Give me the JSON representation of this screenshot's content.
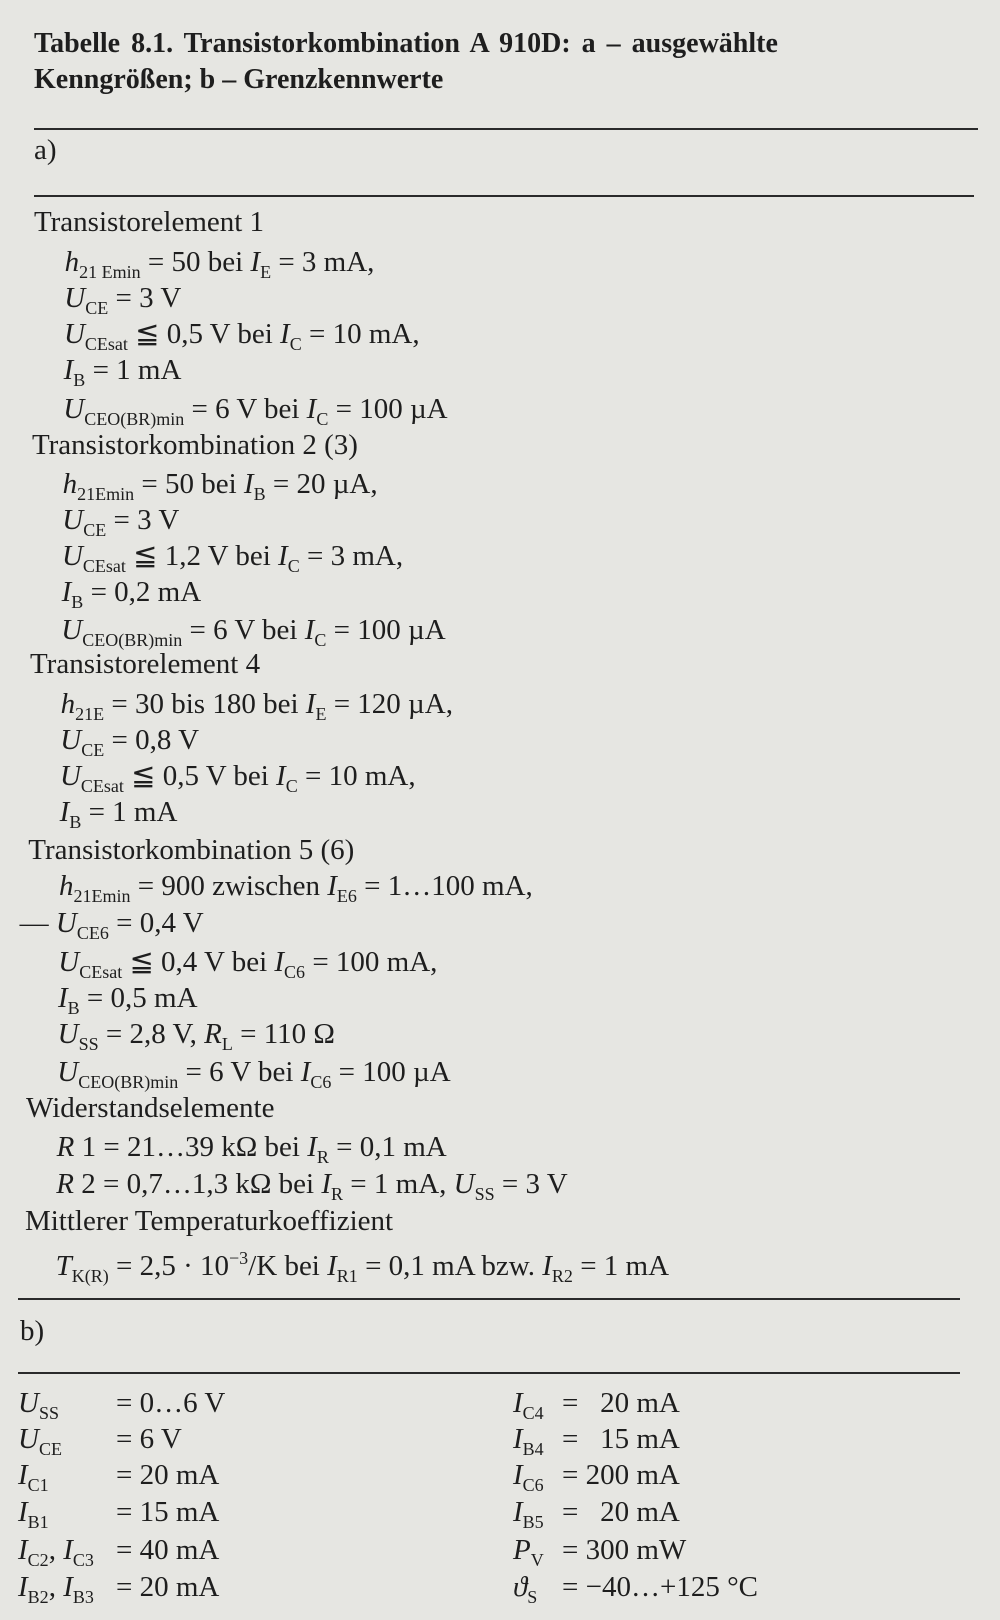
{
  "caption": {
    "line1": "Tabelle 8.1.  Transistorkombination  A 910D:  a  –  ausgewählte",
    "line2": "Kenngrößen; b – Grenzkennwerte"
  },
  "section_a": {
    "label": "a)",
    "lines": [
      {
        "kind": "heading",
        "segs": [
          [
            "Transistorelement 1",
            ""
          ]
        ]
      },
      {
        "kind": "item",
        "segs": [
          [
            "h",
            "i"
          ],
          [
            "21 Emin",
            "b"
          ],
          [
            " = 50 bei ",
            ""
          ],
          [
            "I",
            "i"
          ],
          [
            "E",
            "b"
          ],
          [
            " = 3 mA,",
            ""
          ]
        ]
      },
      {
        "kind": "item",
        "segs": [
          [
            "U",
            "i"
          ],
          [
            "CE",
            "b"
          ],
          [
            " = 3 V",
            ""
          ]
        ]
      },
      {
        "kind": "item",
        "segs": [
          [
            "U",
            "i"
          ],
          [
            "CEsat",
            "b"
          ],
          [
            " ≦ 0,5 V bei ",
            ""
          ],
          [
            "I",
            "i"
          ],
          [
            "C",
            "b"
          ],
          [
            " = 10 mA,",
            ""
          ]
        ]
      },
      {
        "kind": "item",
        "segs": [
          [
            "I",
            "i"
          ],
          [
            "B",
            "b"
          ],
          [
            " = 1 mA",
            ""
          ]
        ]
      },
      {
        "kind": "item",
        "segs": [
          [
            "U",
            "i"
          ],
          [
            "CEO(BR)min",
            "b"
          ],
          [
            " = 6 V bei ",
            ""
          ],
          [
            "I",
            "i"
          ],
          [
            "C",
            "b"
          ],
          [
            " = 100 µA",
            ""
          ]
        ]
      },
      {
        "kind": "heading",
        "segs": [
          [
            "Transistorkombination 2 (3)",
            ""
          ]
        ]
      },
      {
        "kind": "item",
        "segs": [
          [
            "h",
            "i"
          ],
          [
            "21Emin",
            "b"
          ],
          [
            " = 50 bei ",
            ""
          ],
          [
            "I",
            "i"
          ],
          [
            "B",
            "b"
          ],
          [
            " = 20 µA,",
            ""
          ]
        ]
      },
      {
        "kind": "item",
        "segs": [
          [
            "U",
            "i"
          ],
          [
            "CE",
            "b"
          ],
          [
            " = 3 V",
            ""
          ]
        ]
      },
      {
        "kind": "item",
        "segs": [
          [
            "U",
            "i"
          ],
          [
            "CEsat",
            "b"
          ],
          [
            " ≦ 1,2 V bei ",
            ""
          ],
          [
            "I",
            "i"
          ],
          [
            "C",
            "b"
          ],
          [
            " = 3 mA,",
            ""
          ]
        ]
      },
      {
        "kind": "item",
        "segs": [
          [
            "I",
            "i"
          ],
          [
            "B",
            "b"
          ],
          [
            " = 0,2 mA",
            ""
          ]
        ]
      },
      {
        "kind": "item",
        "segs": [
          [
            "U",
            "i"
          ],
          [
            "CEO(BR)min",
            "b"
          ],
          [
            " = 6 V bei ",
            ""
          ],
          [
            "I",
            "i"
          ],
          [
            "C",
            "b"
          ],
          [
            " = 100 µA",
            ""
          ]
        ]
      },
      {
        "kind": "heading",
        "segs": [
          [
            "Transistorelement 4",
            ""
          ]
        ]
      },
      {
        "kind": "item",
        "segs": [
          [
            "h",
            "i"
          ],
          [
            "21E",
            "b"
          ],
          [
            " = 30 bis 180 bei ",
            ""
          ],
          [
            "I",
            "i"
          ],
          [
            "E",
            "b"
          ],
          [
            " = 120 µA,",
            ""
          ]
        ]
      },
      {
        "kind": "item",
        "segs": [
          [
            "U",
            "i"
          ],
          [
            "CE",
            "b"
          ],
          [
            " = 0,8 V",
            ""
          ]
        ]
      },
      {
        "kind": "item",
        "segs": [
          [
            "U",
            "i"
          ],
          [
            "CEsat",
            "b"
          ],
          [
            " ≦ 0,5 V bei ",
            ""
          ],
          [
            "I",
            "i"
          ],
          [
            "C",
            "b"
          ],
          [
            " = 10 mA,",
            ""
          ]
        ]
      },
      {
        "kind": "item",
        "segs": [
          [
            "I",
            "i"
          ],
          [
            "B",
            "b"
          ],
          [
            " = 1 mA",
            ""
          ]
        ]
      },
      {
        "kind": "heading",
        "segs": [
          [
            "Transistorkombination 5 (6)",
            ""
          ]
        ]
      },
      {
        "kind": "item",
        "segs": [
          [
            "h",
            "i"
          ],
          [
            "21Emin",
            "b"
          ],
          [
            " = 900 zwischen ",
            ""
          ],
          [
            "I",
            "i"
          ],
          [
            "E6",
            "b"
          ],
          [
            " = 1…100 mA,",
            ""
          ]
        ]
      },
      {
        "kind": "dash-item",
        "segs": [
          [
            "— ",
            ""
          ],
          [
            "U",
            "i"
          ],
          [
            "CE6",
            "b"
          ],
          [
            " = 0,4 V",
            ""
          ]
        ]
      },
      {
        "kind": "item",
        "segs": [
          [
            "U",
            "i"
          ],
          [
            "CEsat",
            "b"
          ],
          [
            " ≦ 0,4 V bei ",
            ""
          ],
          [
            "I",
            "i"
          ],
          [
            "C6",
            "b"
          ],
          [
            " = 100 mA,",
            ""
          ]
        ]
      },
      {
        "kind": "item",
        "segs": [
          [
            "I",
            "i"
          ],
          [
            "B",
            "b"
          ],
          [
            " = 0,5 mA",
            ""
          ]
        ]
      },
      {
        "kind": "item",
        "segs": [
          [
            "U",
            "i"
          ],
          [
            "SS",
            "b"
          ],
          [
            " = 2,8 V, ",
            ""
          ],
          [
            "R",
            "i"
          ],
          [
            "L",
            "b"
          ],
          [
            " = 110 Ω",
            ""
          ]
        ]
      },
      {
        "kind": "item",
        "segs": [
          [
            "U",
            "i"
          ],
          [
            "CEO(BR)min",
            "b"
          ],
          [
            " = 6 V bei ",
            ""
          ],
          [
            "I",
            "i"
          ],
          [
            "C6",
            "b"
          ],
          [
            " = 100 µA",
            ""
          ]
        ]
      },
      {
        "kind": "heading",
        "segs": [
          [
            "Widerstandselemente",
            ""
          ]
        ]
      },
      {
        "kind": "item",
        "segs": [
          [
            "R",
            "i"
          ],
          [
            " 1 = 21…39 kΩ bei ",
            ""
          ],
          [
            "I",
            "i"
          ],
          [
            "R",
            "b"
          ],
          [
            " = 0,1 mA",
            ""
          ]
        ]
      },
      {
        "kind": "item",
        "segs": [
          [
            "R",
            "i"
          ],
          [
            " 2 = 0,7…1,3 kΩ bei ",
            ""
          ],
          [
            "I",
            "i"
          ],
          [
            "R",
            "b"
          ],
          [
            " = 1 mA, ",
            ""
          ],
          [
            "U",
            "i"
          ],
          [
            "SS",
            "b"
          ],
          [
            " = 3 V",
            ""
          ]
        ]
      },
      {
        "kind": "heading",
        "segs": [
          [
            "Mittlerer Temperaturkoeffizient",
            ""
          ]
        ]
      },
      {
        "kind": "item",
        "segs": [
          [
            "T",
            "i"
          ],
          [
            "K(R)",
            "b"
          ],
          [
            " = 2,5 · 10",
            ""
          ],
          [
            "−3",
            "p"
          ],
          [
            "/K bei ",
            ""
          ],
          [
            "I",
            "i"
          ],
          [
            "R1",
            "b"
          ],
          [
            " = 0,1 mA bzw. ",
            ""
          ],
          [
            "I",
            "i"
          ],
          [
            "R2",
            "b"
          ],
          [
            " = 1 mA",
            ""
          ]
        ]
      }
    ]
  },
  "section_b": {
    "label": "b)",
    "left": [
      {
        "label": [
          [
            "U",
            "i"
          ],
          [
            "SS",
            "b"
          ]
        ],
        "value": "= 0…6 V"
      },
      {
        "label": [
          [
            "U",
            "i"
          ],
          [
            "CE",
            "b"
          ]
        ],
        "value": "= 6 V"
      },
      {
        "label": [
          [
            "I",
            "i"
          ],
          [
            "C1",
            "b"
          ]
        ],
        "value": "= 20 mA"
      },
      {
        "label": [
          [
            "I",
            "i"
          ],
          [
            "B1",
            "b"
          ]
        ],
        "value": "= 15 mA"
      },
      {
        "label": [
          [
            "I",
            "i"
          ],
          [
            "C2",
            "b"
          ],
          [
            ", ",
            ""
          ],
          [
            "I",
            "i"
          ],
          [
            "C3",
            "b"
          ]
        ],
        "value": "= 40 mA"
      },
      {
        "label": [
          [
            "I",
            "i"
          ],
          [
            "B2",
            "b"
          ],
          [
            ", ",
            ""
          ],
          [
            "I",
            "i"
          ],
          [
            "B3",
            "b"
          ]
        ],
        "value": "= 20 mA"
      }
    ],
    "right": [
      {
        "label": [
          [
            "I",
            "i"
          ],
          [
            "C4",
            "b"
          ]
        ],
        "value": "=   20 mA"
      },
      {
        "label": [
          [
            "I",
            "i"
          ],
          [
            "B4",
            "b"
          ]
        ],
        "value": "=   15 mA"
      },
      {
        "label": [
          [
            "I",
            "i"
          ],
          [
            "C6",
            "b"
          ]
        ],
        "value": "= 200 mA"
      },
      {
        "label": [
          [
            "I",
            "i"
          ],
          [
            "B5",
            "b"
          ]
        ],
        "value": "=   20 mA"
      },
      {
        "label": [
          [
            "P",
            "i"
          ],
          [
            "V",
            "b"
          ]
        ],
        "value": "= 300 mW"
      },
      {
        "label": [
          [
            "ϑ",
            "i"
          ],
          [
            "S",
            "b"
          ]
        ],
        "value": "= −40…+125 °C"
      }
    ]
  }
}
